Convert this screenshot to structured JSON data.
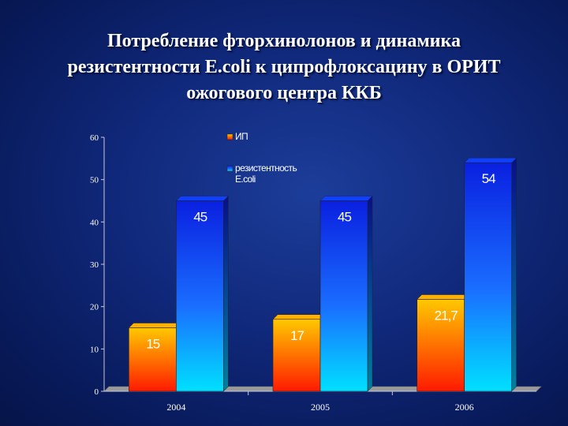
{
  "title_lines": [
    "Потребление фторхинолонов и динамика",
    "резистентности E.coli к ципрофлоксацину в ОРИТ",
    "ожогового центра ККБ"
  ],
  "chart_data": {
    "type": "bar",
    "categories": [
      "2004",
      "2005",
      "2006"
    ],
    "series": [
      {
        "name": "ИП",
        "values": [
          15,
          17,
          21.7
        ],
        "labels": [
          "15",
          "17",
          "21,7"
        ],
        "color": "#ff2a00",
        "color2": "#ffc400"
      },
      {
        "name": "резистентность E.coli",
        "values": [
          45,
          45,
          54
        ],
        "labels": [
          "45",
          "45",
          "54"
        ],
        "color": "#00d8ff",
        "color2": "#0a2fe0"
      }
    ],
    "ylim": [
      0,
      60
    ],
    "yticks": [
      "0",
      "10",
      "20",
      "30",
      "40",
      "50",
      "60"
    ],
    "legend_position": "top-left",
    "grid": false,
    "style": "3d"
  }
}
